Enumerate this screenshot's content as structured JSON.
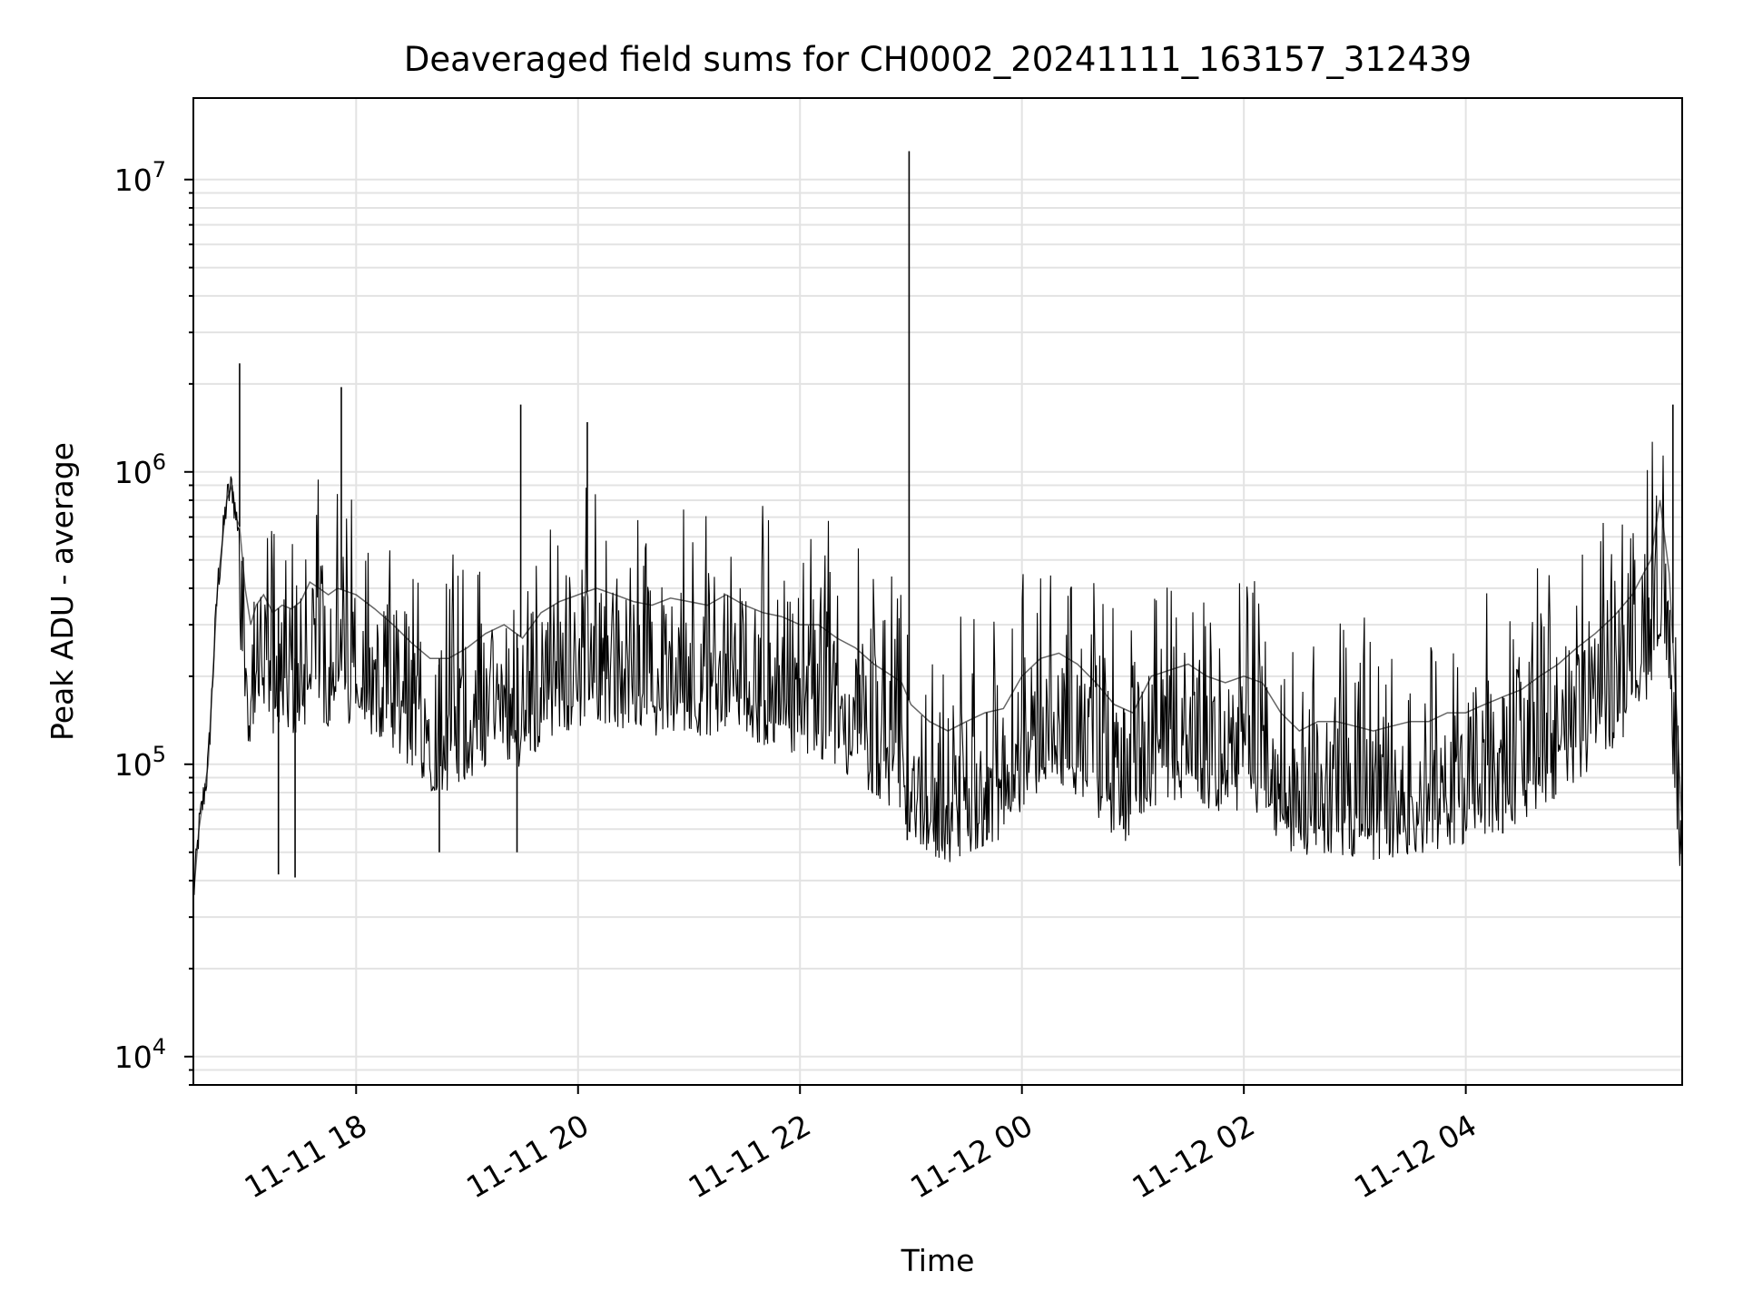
{
  "chart_data": {
    "type": "line",
    "title": "Deaveraged field sums for CH0002_20241111_163157_312439",
    "xlabel": "Time",
    "ylabel": "Peak ADU - average",
    "yscale": "log",
    "ylim": [
      8000,
      19000000
    ],
    "xlim": [
      "2024-11-11 16:32",
      "2024-11-12 05:57"
    ],
    "grid": true,
    "legend": "none",
    "line_color": "#000000",
    "x_tick_labels": [
      {
        "t": "2024-11-11 18:00",
        "label": "11-11 18"
      },
      {
        "t": "2024-11-11 20:00",
        "label": "11-11 20"
      },
      {
        "t": "2024-11-11 22:00",
        "label": "11-11 22"
      },
      {
        "t": "2024-11-12 00:00",
        "label": "11-12 00"
      },
      {
        "t": "2024-11-12 02:00",
        "label": "11-12 02"
      },
      {
        "t": "2024-11-12 04:00",
        "label": "11-12 04"
      }
    ],
    "y_tick_labels": [
      {
        "value": 10000,
        "base": "10",
        "exp": "4"
      },
      {
        "value": 100000,
        "base": "10",
        "exp": "5"
      },
      {
        "value": 1000000,
        "base": "10",
        "exp": "6"
      },
      {
        "value": 10000000,
        "base": "10",
        "exp": "7"
      }
    ],
    "series": [
      {
        "x": [
          "2024-11-11 16:32",
          "2024-11-11 16:35",
          "2024-11-11 16:40",
          "2024-11-11 16:45",
          "2024-11-11 16:50",
          "2024-11-11 16:53",
          "2024-11-11 16:55",
          "2024-11-11 16:57",
          "2024-11-11 17:00",
          "2024-11-11 17:03",
          "2024-11-11 17:06",
          "2024-11-11 17:10",
          "2024-11-11 17:15",
          "2024-11-11 17:20",
          "2024-11-11 17:25",
          "2024-11-11 17:30",
          "2024-11-11 17:35",
          "2024-11-11 17:40",
          "2024-11-11 17:45",
          "2024-11-11 17:50",
          "2024-11-11 18:00",
          "2024-11-11 18:10",
          "2024-11-11 18:20",
          "2024-11-11 18:30",
          "2024-11-11 18:40",
          "2024-11-11 18:50",
          "2024-11-11 19:00",
          "2024-11-11 19:10",
          "2024-11-11 19:20",
          "2024-11-11 19:30",
          "2024-11-11 19:40",
          "2024-11-11 19:50",
          "2024-11-11 20:00",
          "2024-11-11 20:10",
          "2024-11-11 20:20",
          "2024-11-11 20:30",
          "2024-11-11 20:40",
          "2024-11-11 20:50",
          "2024-11-11 21:00",
          "2024-11-11 21:10",
          "2024-11-11 21:20",
          "2024-11-11 21:30",
          "2024-11-11 21:40",
          "2024-11-11 21:50",
          "2024-11-11 22:00",
          "2024-11-11 22:10",
          "2024-11-11 22:20",
          "2024-11-11 22:30",
          "2024-11-11 22:40",
          "2024-11-11 22:50",
          "2024-11-11 22:55",
          "2024-11-11 23:00",
          "2024-11-11 23:10",
          "2024-11-11 23:20",
          "2024-11-11 23:30",
          "2024-11-11 23:40",
          "2024-11-11 23:50",
          "2024-11-12 00:00",
          "2024-11-12 00:10",
          "2024-11-12 00:20",
          "2024-11-12 00:30",
          "2024-11-12 00:40",
          "2024-11-12 00:50",
          "2024-11-12 01:00",
          "2024-11-12 01:10",
          "2024-11-12 01:20",
          "2024-11-12 01:30",
          "2024-11-12 01:40",
          "2024-11-12 01:50",
          "2024-11-12 02:00",
          "2024-11-12 02:10",
          "2024-11-12 02:20",
          "2024-11-12 02:30",
          "2024-11-12 02:40",
          "2024-11-12 02:50",
          "2024-11-12 03:00",
          "2024-11-12 03:10",
          "2024-11-12 03:20",
          "2024-11-12 03:30",
          "2024-11-12 03:40",
          "2024-11-12 03:50",
          "2024-11-12 04:00",
          "2024-11-12 04:10",
          "2024-11-12 04:20",
          "2024-11-12 04:30",
          "2024-11-12 04:40",
          "2024-11-12 04:50",
          "2024-11-12 05:00",
          "2024-11-12 05:10",
          "2024-11-12 05:20",
          "2024-11-12 05:30",
          "2024-11-12 05:40",
          "2024-11-12 05:45",
          "2024-11-12 05:50",
          "2024-11-12 05:54",
          "2024-11-12 05:57"
        ],
        "y": [
          35000,
          60000,
          100000,
          400000,
          800000,
          900000,
          700000,
          650000,
          400000,
          300000,
          350000,
          380000,
          330000,
          350000,
          340000,
          360000,
          420000,
          400000,
          380000,
          400000,
          380000,
          340000,
          300000,
          260000,
          230000,
          230000,
          250000,
          280000,
          300000,
          270000,
          330000,
          360000,
          380000,
          400000,
          380000,
          360000,
          350000,
          370000,
          360000,
          350000,
          380000,
          350000,
          330000,
          320000,
          300000,
          300000,
          270000,
          250000,
          220000,
          200000,
          190000,
          160000,
          140000,
          130000,
          140000,
          150000,
          155000,
          200000,
          230000,
          240000,
          220000,
          190000,
          160000,
          150000,
          200000,
          210000,
          220000,
          200000,
          190000,
          200000,
          190000,
          150000,
          130000,
          140000,
          140000,
          135000,
          130000,
          135000,
          140000,
          140000,
          150000,
          150000,
          160000,
          170000,
          180000,
          200000,
          220000,
          250000,
          280000,
          320000,
          380000,
          500000,
          800000,
          450000,
          150000,
          60000
        ]
      }
    ],
    "range_band": {
      "lo_factor": 0.42,
      "hi_factor": 2.4,
      "hi_spikes": [
        {
          "t": "2024-11-11 16:57",
          "y": 2350000
        },
        {
          "t": "2024-11-11 17:52",
          "y": 1950000
        },
        {
          "t": "2024-11-11 19:29",
          "y": 1700000
        },
        {
          "t": "2024-11-11 20:05",
          "y": 1480000
        },
        {
          "t": "2024-11-11 22:59",
          "y": 12500000
        },
        {
          "t": "2024-11-12 05:52",
          "y": 1700000
        }
      ],
      "lo_spikes": [
        {
          "t": "2024-11-11 17:18",
          "y": 42000
        },
        {
          "t": "2024-11-11 17:27",
          "y": 41000
        },
        {
          "t": "2024-11-11 18:45",
          "y": 50000
        },
        {
          "t": "2024-11-11 19:27",
          "y": 50000
        },
        {
          "t": "2024-11-11 22:58",
          "y": 55000
        },
        {
          "t": "2024-11-11 23:41",
          "y": 55000
        },
        {
          "t": "2024-11-12 00:55",
          "y": 60000
        },
        {
          "t": "2024-11-12 02:38",
          "y": 58000
        },
        {
          "t": "2024-11-12 04:20",
          "y": 58000
        }
      ]
    }
  }
}
